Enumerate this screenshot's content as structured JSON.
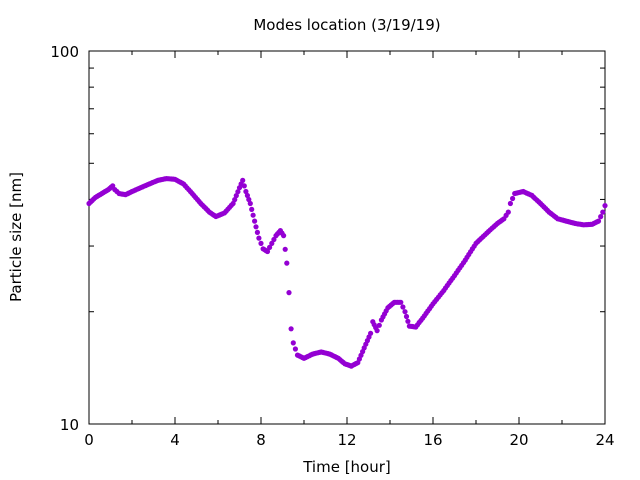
{
  "chart_data": {
    "type": "scatter",
    "title": "Modes location (3/19/19)",
    "xlabel": "Time [hour]",
    "ylabel": "Particle size [nm]",
    "xlim": [
      0,
      24
    ],
    "ylim": [
      10,
      100
    ],
    "yscale": "log",
    "xticks": [
      "0",
      "4",
      "8",
      "12",
      "16",
      "20",
      "24"
    ],
    "yticks": [
      "10",
      "100"
    ],
    "grid": false,
    "marker_color": "#9400d3",
    "series": [
      {
        "points": [
          [
            0.0,
            39.0
          ],
          [
            0.3,
            40.5
          ],
          [
            0.6,
            41.5
          ],
          [
            0.9,
            42.5
          ],
          [
            1.1,
            43.5
          ],
          [
            1.2,
            42.5
          ],
          [
            1.4,
            41.5
          ],
          [
            1.7,
            41.2
          ],
          [
            2.0,
            42.0
          ],
          [
            2.4,
            43.0
          ],
          [
            2.8,
            44.0
          ],
          [
            3.2,
            45.0
          ],
          [
            3.6,
            45.5
          ],
          [
            4.0,
            45.3
          ],
          [
            4.4,
            44.0
          ],
          [
            4.8,
            41.5
          ],
          [
            5.2,
            39.0
          ],
          [
            5.6,
            37.0
          ],
          [
            5.9,
            36.0
          ],
          [
            6.3,
            36.8
          ],
          [
            6.7,
            39.0
          ],
          [
            7.0,
            43.0
          ],
          [
            7.15,
            45.0
          ],
          [
            7.3,
            42.0
          ],
          [
            7.5,
            39.0
          ],
          [
            7.7,
            35.0
          ],
          [
            7.9,
            31.5
          ],
          [
            8.1,
            29.5
          ],
          [
            8.3,
            29.0
          ],
          [
            8.5,
            30.5
          ],
          [
            8.7,
            32.0
          ],
          [
            8.9,
            33.0
          ],
          [
            9.05,
            32.0
          ],
          [
            9.2,
            27.0
          ],
          [
            9.3,
            22.5
          ],
          [
            9.4,
            18.0
          ],
          [
            9.5,
            16.5
          ],
          [
            9.7,
            15.3
          ],
          [
            10.0,
            15.0
          ],
          [
            10.4,
            15.4
          ],
          [
            10.8,
            15.6
          ],
          [
            11.2,
            15.4
          ],
          [
            11.6,
            15.0
          ],
          [
            11.9,
            14.5
          ],
          [
            12.2,
            14.3
          ],
          [
            12.5,
            14.6
          ],
          [
            12.8,
            16.0
          ],
          [
            13.1,
            17.5
          ],
          [
            13.2,
            18.8
          ],
          [
            13.4,
            17.8
          ],
          [
            13.6,
            19.0
          ],
          [
            13.9,
            20.5
          ],
          [
            14.2,
            21.2
          ],
          [
            14.5,
            21.2
          ],
          [
            14.7,
            20.0
          ],
          [
            14.9,
            18.3
          ],
          [
            15.2,
            18.2
          ],
          [
            15.6,
            19.5
          ],
          [
            16.0,
            21.0
          ],
          [
            16.5,
            22.8
          ],
          [
            17.0,
            25.0
          ],
          [
            17.5,
            27.5
          ],
          [
            18.0,
            30.5
          ],
          [
            18.5,
            32.5
          ],
          [
            19.0,
            34.5
          ],
          [
            19.3,
            35.5
          ],
          [
            19.5,
            37.0
          ],
          [
            19.6,
            39.0
          ],
          [
            19.8,
            41.5
          ],
          [
            20.2,
            42.0
          ],
          [
            20.6,
            41.0
          ],
          [
            21.0,
            39.0
          ],
          [
            21.4,
            37.0
          ],
          [
            21.8,
            35.5
          ],
          [
            22.2,
            35.0
          ],
          [
            22.6,
            34.5
          ],
          [
            23.0,
            34.2
          ],
          [
            23.4,
            34.3
          ],
          [
            23.7,
            35.0
          ],
          [
            23.9,
            37.0
          ],
          [
            24.0,
            38.5
          ]
        ]
      }
    ]
  }
}
